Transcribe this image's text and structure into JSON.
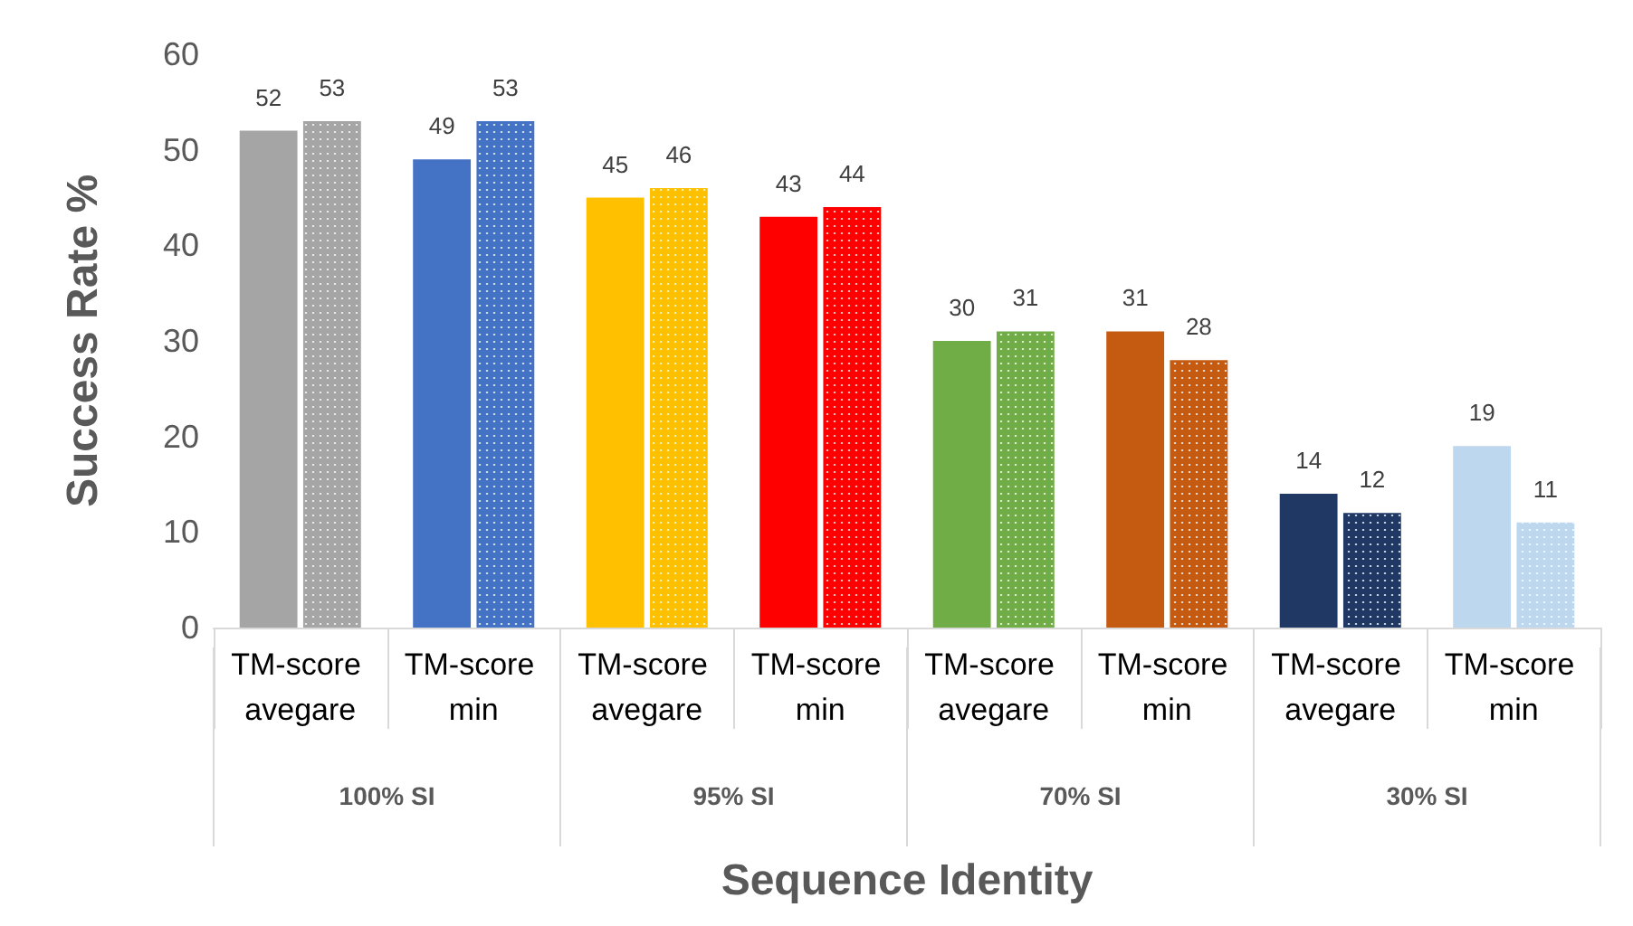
{
  "chart_data": {
    "type": "bar",
    "xlabel": "Sequence Identity",
    "ylabel": "Success Rate %",
    "categories": [
      "TM-score avegare",
      "TM-score min",
      "TM-score avegare",
      "TM-score min",
      "TM-score avegare",
      "TM-score min",
      "TM-score avegare",
      "TM-score min"
    ],
    "series": [
      {
        "colors": [
          "#a5a5a5",
          "#4472c4",
          "#ffc000",
          "#ff0000",
          "#70ad47",
          "#c55a11",
          "#203864",
          "#bdd7ee"
        ],
        "values": [
          52,
          49,
          45,
          43,
          30,
          31,
          14,
          19
        ]
      },
      {
        "colors": [
          "#a5a5a5",
          "#4472c4",
          "#ffc000",
          "#ff0000",
          "#70ad47",
          "#c55a11",
          "#203864",
          "#bdd7ee"
        ],
        "values": [
          53,
          53,
          46,
          44,
          31,
          28,
          12,
          11
        ]
      }
    ],
    "annotations": [
      "100% SI",
      "95% SI",
      "70% SI",
      "30% SI"
    ],
    "ylim": [
      0,
      60
    ],
    "yticks": [
      0,
      10,
      20,
      30,
      40,
      50,
      60
    ],
    "data_labels": true,
    "grid": false
  }
}
